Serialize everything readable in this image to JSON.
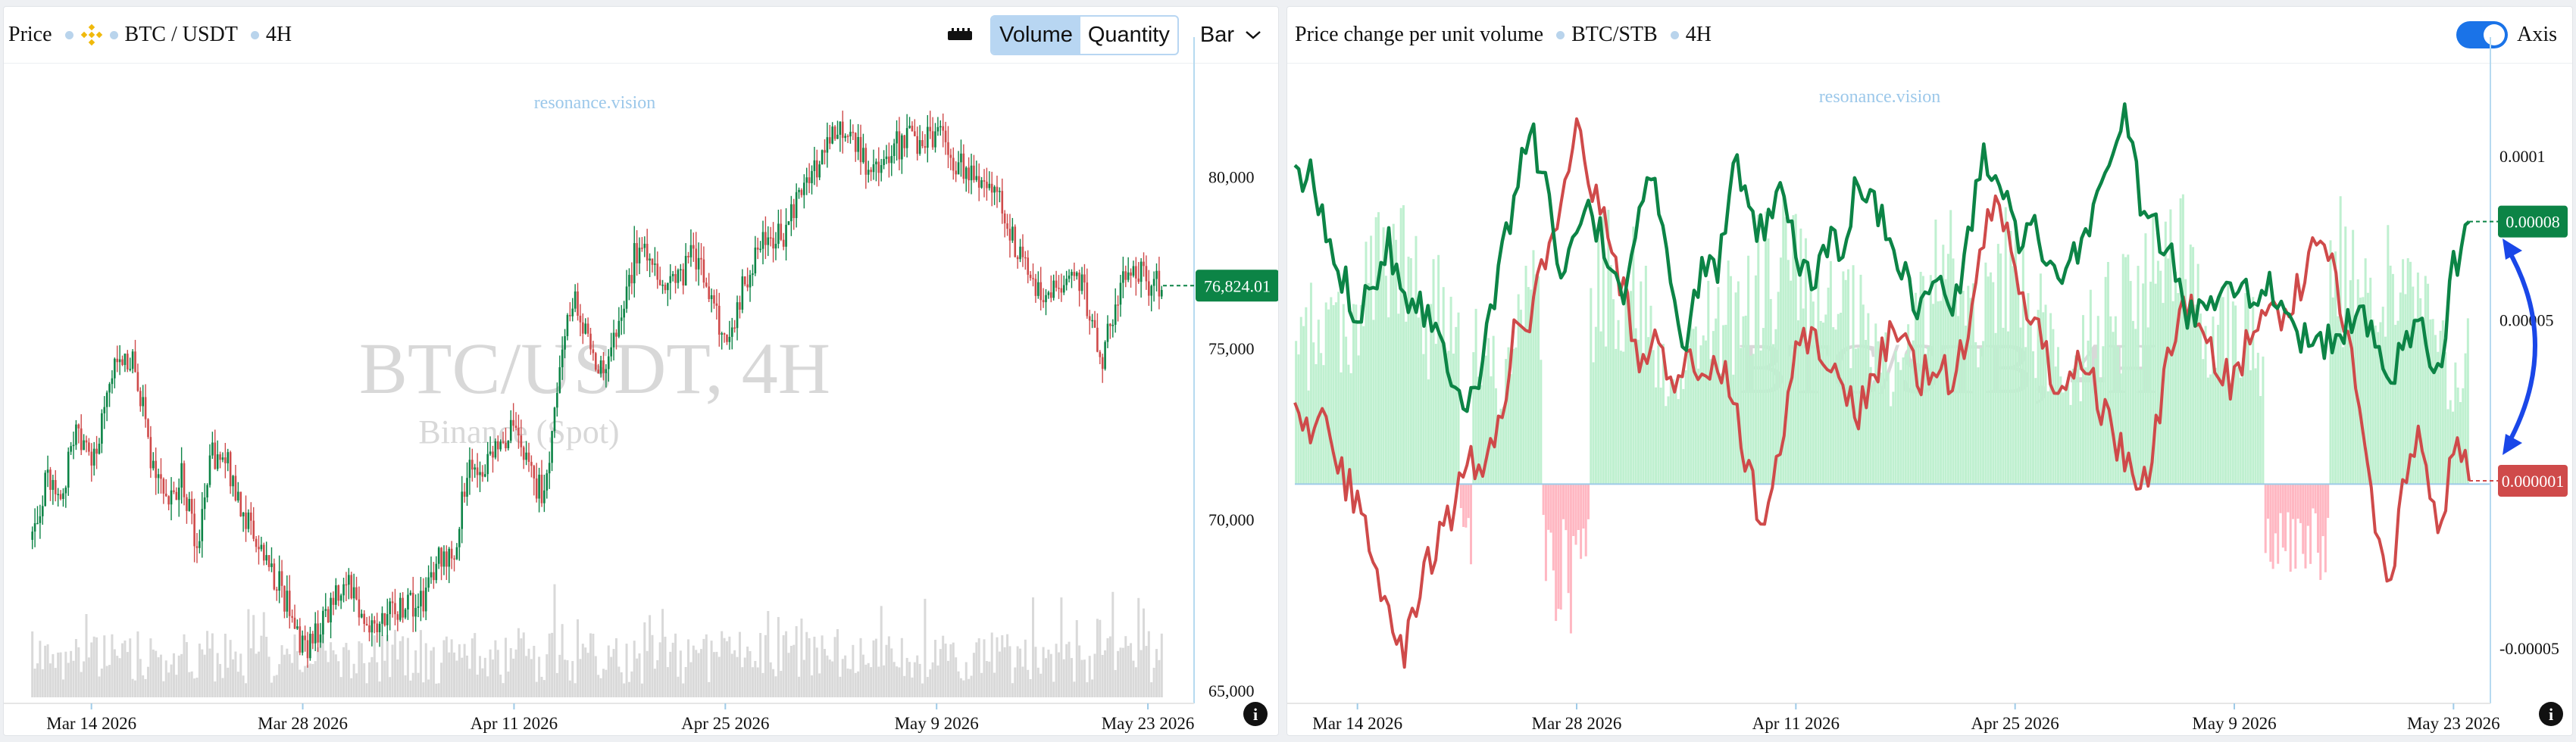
{
  "left": {
    "header": {
      "price_label": "Price",
      "pair": "BTC / USDT",
      "timeframe": "4H"
    },
    "toolbar": {
      "volume_label": "Volume",
      "quantity_label": "Quantity",
      "bar_label": "Bar"
    },
    "watermark": {
      "brand": "resonance.vision",
      "main": "BTC/USDT, 4H",
      "sub": "Binance (Spot)"
    },
    "last_price_label": "76,824.01"
  },
  "right": {
    "header": {
      "title": "Price change per unit volume",
      "pair": "BTC/STB",
      "timeframe": "4H"
    },
    "toolbar": {
      "axis_label": "Axis"
    },
    "watermark": {
      "brand": "resonance.vision",
      "main": "BTC/STB, 4H"
    },
    "badge_top": "0.00008",
    "badge_bottom": "0.000001"
  },
  "colors": {
    "up": "#0c8446",
    "down": "#cf4a4a",
    "volume": "#d9d9d9",
    "hist_pos": "#bff0d0",
    "hist_neg": "#ffb7c2",
    "axis_line": "#9fcbe8",
    "arrow": "#1a47e8"
  },
  "icons": {
    "exchange_logo": "binance-logo-icon",
    "ruler": "ruler-icon",
    "info": "info-icon",
    "chevron": "chevron-down-icon"
  },
  "chart_data": [
    {
      "type": "candlestick",
      "y_ticks": [
        "80,000",
        "75,000",
        "70,000",
        "65,000"
      ],
      "y_tick_values": [
        80000,
        75000,
        70000,
        65000
      ],
      "ylim": [
        64800,
        83200
      ],
      "x_ticks": [
        "Mar 14 2026",
        "Mar 28 2026",
        "Apr 11 2026",
        "Apr 25 2026",
        "May 9 2026",
        "May 23 2026"
      ],
      "x_start": "Mar 10 2026",
      "x_end": "May 24 2026",
      "close_path": [
        [
          "Mar 10 2026",
          69400
        ],
        [
          "Mar 11 2026",
          71200
        ],
        [
          "Mar 12 2026",
          70500
        ],
        [
          "Mar 13 2026",
          72800
        ],
        [
          "Mar 14 2026",
          71300
        ],
        [
          "Mar 15 2026",
          73500
        ],
        [
          "Mar 16 2026",
          74900
        ],
        [
          "Mar 17 2026",
          74300
        ],
        [
          "Mar 18 2026",
          71500
        ],
        [
          "Mar 19 2026",
          70300
        ],
        [
          "Mar 20 2026",
          71300
        ],
        [
          "Mar 21 2026",
          69300
        ],
        [
          "Mar 22 2026",
          71800
        ],
        [
          "Mar 23 2026",
          71600
        ],
        [
          "Mar 24 2026",
          70300
        ],
        [
          "Mar 25 2026",
          69300
        ],
        [
          "Mar 26 2026",
          68500
        ],
        [
          "Mar 27 2026",
          67500
        ],
        [
          "Mar 28 2026",
          66200
        ],
        [
          "Mar 29 2026",
          66700
        ],
        [
          "Mar 30 2026",
          67700
        ],
        [
          "Mar 31 2026",
          68400
        ],
        [
          "Apr 1 2026",
          67100
        ],
        [
          "Apr 2 2026",
          66800
        ],
        [
          "Apr 3 2026",
          67300
        ],
        [
          "Apr 4 2026",
          67600
        ],
        [
          "Apr 5 2026",
          67500
        ],
        [
          "Apr 6 2026",
          69000
        ],
        [
          "Apr 7 2026",
          68600
        ],
        [
          "Apr 8 2026",
          71800
        ],
        [
          "Apr 9 2026",
          71300
        ],
        [
          "Apr 10 2026",
          72300
        ],
        [
          "Apr 11 2026",
          72500
        ],
        [
          "Apr 12 2026",
          71400
        ],
        [
          "Apr 13 2026",
          70600
        ],
        [
          "Apr 14 2026",
          74700
        ],
        [
          "Apr 15 2026",
          76400
        ],
        [
          "Apr 16 2026",
          75100
        ],
        [
          "Apr 17 2026",
          74200
        ],
        [
          "Apr 18 2026",
          75600
        ],
        [
          "Apr 19 2026",
          77700
        ],
        [
          "Apr 20 2026",
          77800
        ],
        [
          "Apr 21 2026",
          76800
        ],
        [
          "Apr 22 2026",
          77100
        ],
        [
          "Apr 23 2026",
          77800
        ],
        [
          "Apr 24 2026",
          76500
        ],
        [
          "Apr 25 2026",
          75200
        ],
        [
          "Apr 26 2026",
          76500
        ],
        [
          "Apr 27 2026",
          77800
        ],
        [
          "Apr 28 2026",
          78100
        ],
        [
          "Apr 29 2026",
          78400
        ],
        [
          "Apr 30 2026",
          79800
        ],
        [
          "May 1 2026",
          80200
        ],
        [
          "May 2 2026",
          81100
        ],
        [
          "May 3 2026",
          81600
        ],
        [
          "May 4 2026",
          80600
        ],
        [
          "May 5 2026",
          80000
        ],
        [
          "May 6 2026",
          80800
        ],
        [
          "May 7 2026",
          81100
        ],
        [
          "May 8 2026",
          80900
        ],
        [
          "May 9 2026",
          81300
        ],
        [
          "May 10 2026",
          80500
        ],
        [
          "May 11 2026",
          80300
        ],
        [
          "May 12 2026",
          79600
        ],
        [
          "May 13 2026",
          79800
        ],
        [
          "May 14 2026",
          78300
        ],
        [
          "May 15 2026",
          77200
        ],
        [
          "May 16 2026",
          76700
        ],
        [
          "May 17 2026",
          76700
        ],
        [
          "May 18 2026",
          77500
        ],
        [
          "May 19 2026",
          76300
        ],
        [
          "May 20 2026",
          74600
        ],
        [
          "May 21 2026",
          76600
        ],
        [
          "May 22 2026",
          77500
        ],
        [
          "May 23 2026",
          76900
        ],
        [
          "May 24 2026",
          76824
        ]
      ],
      "last_price": 76824.01,
      "volume_note": "Grey volume bars along the bottom of the price panel"
    },
    {
      "type": "line",
      "y_ticks": [
        "0.0001",
        "0.00005",
        "-0.00005"
      ],
      "y_tick_values": [
        0.0001,
        5e-05,
        -5e-05
      ],
      "ylim": [
        -6.5e-05,
        0.000127
      ],
      "x_ticks": [
        "Mar 14 2026",
        "Mar 28 2026",
        "Apr 11 2026",
        "Apr 25 2026",
        "May 9 2026",
        "May 23 2026"
      ],
      "x_start": "Mar 10 2026",
      "x_end": "May 24 2026",
      "series": [
        {
          "values": [
            [
              "Mar 10 2026",
              9.2e-05
            ],
            [
              "Mar 11 2026",
              9.4e-05
            ],
            [
              "Mar 12 2026",
              7.6e-05
            ],
            [
              "Mar 13 2026",
              6.3e-05
            ],
            [
              "Mar 14 2026",
              5.3e-05
            ],
            [
              "Mar 15 2026",
              6.2e-05
            ],
            [
              "Mar 16 2026",
              7.4e-05
            ],
            [
              "Mar 17 2026",
              5.8e-05
            ],
            [
              "Mar 18 2026",
              5.6e-05
            ],
            [
              "Mar 19 2026",
              4.7e-05
            ],
            [
              "Mar 20 2026",
              3.5e-05
            ],
            [
              "Mar 21 2026",
              2.6e-05
            ],
            [
              "Mar 22 2026",
              3.6e-05
            ],
            [
              "Mar 23 2026",
              6.5e-05
            ],
            [
              "Mar 24 2026",
              8.8e-05
            ],
            [
              "Mar 25 2026",
              0.000108
            ],
            [
              "Mar 26 2026",
              9.4e-05
            ],
            [
              "Mar 27 2026",
              5.8e-05
            ],
            [
              "Mar 28 2026",
              7.8e-05
            ],
            [
              "Mar 29 2026",
              8.2e-05
            ],
            [
              "Mar 30 2026",
              6.9e-05
            ],
            [
              "Mar 31 2026",
              5.9e-05
            ],
            [
              "Apr 1 2026",
              8.5e-05
            ],
            [
              "Apr 2 2026",
              9.4e-05
            ],
            [
              "Apr 3 2026",
              5.7e-05
            ],
            [
              "Apr 4 2026",
              4.4e-05
            ],
            [
              "Apr 5 2026",
              6.6e-05
            ],
            [
              "Apr 6 2026",
              6.5e-05
            ],
            [
              "Apr 7 2026",
              9.9e-05
            ],
            [
              "Apr 8 2026",
              8.1e-05
            ],
            [
              "Apr 9 2026",
              7.5e-05
            ],
            [
              "Apr 10 2026",
              8.8e-05
            ],
            [
              "Apr 11 2026",
              7.1e-05
            ],
            [
              "Apr 12 2026",
              6e-05
            ],
            [
              "Apr 13 2026",
              7.5e-05
            ],
            [
              "Apr 14 2026",
              6.8e-05
            ],
            [
              "Apr 15 2026",
              9.5e-05
            ],
            [
              "Apr 16 2026",
              8.4e-05
            ],
            [
              "Apr 17 2026",
              7.6e-05
            ],
            [
              "Apr 18 2026",
              6.4e-05
            ],
            [
              "Apr 19 2026",
              5.2e-05
            ],
            [
              "Apr 20 2026",
              6.5e-05
            ],
            [
              "Apr 21 2026",
              5e-05
            ],
            [
              "Apr 22 2026",
              7.5e-05
            ],
            [
              "Apr 23 2026",
              0.0001
            ],
            [
              "Apr 24 2026",
              9.2e-05
            ],
            [
              "Apr 25 2026",
              7.5e-05
            ],
            [
              "Apr 26 2026",
              8e-05
            ],
            [
              "Apr 27 2026",
              6.5e-05
            ],
            [
              "Apr 28 2026",
              5.8e-05
            ],
            [
              "Apr 29 2026",
              7.2e-05
            ],
            [
              "Apr 30 2026",
              8.3e-05
            ],
            [
              "May 1 2026",
              0.0001
            ],
            [
              "May 2 2026",
              0.000112
            ],
            [
              "May 3 2026",
              8.8e-05
            ],
            [
              "May 4 2026",
              7.7e-05
            ],
            [
              "May 5 2026",
              6.8e-05
            ],
            [
              "May 6 2026",
              5e-05
            ],
            [
              "May 7 2026",
              5.5e-05
            ],
            [
              "May 8 2026",
              6e-05
            ],
            [
              "May 9 2026",
              6.3e-05
            ],
            [
              "May 10 2026",
              5.6e-05
            ],
            [
              "May 11 2026",
              6.1e-05
            ],
            [
              "May 12 2026",
              5.7e-05
            ],
            [
              "May 13 2026",
              4.8e-05
            ],
            [
              "May 14 2026",
              4e-05
            ],
            [
              "May 15 2026",
              4.3e-05
            ],
            [
              "May 16 2026",
              4.5e-05
            ],
            [
              "May 17 2026",
              5.6e-05
            ],
            [
              "May 18 2026",
              4e-05
            ],
            [
              "May 19 2026",
              3.3e-05
            ],
            [
              "May 20 2026",
              4.5e-05
            ],
            [
              "May 21 2026",
              4.9e-05
            ],
            [
              "May 22 2026",
              3.4e-05
            ],
            [
              "May 23 2026",
              6.5e-05
            ],
            [
              "May 24 2026",
              8e-05
            ]
          ]
        },
        {
          "values": [
            [
              "Mar 10 2026",
              2.8e-05
            ],
            [
              "Mar 11 2026",
              1.5e-05
            ],
            [
              "Mar 12 2026",
              2.1e-05
            ],
            [
              "Mar 13 2026",
              3e-06
            ],
            [
              "Mar 14 2026",
              -5e-06
            ],
            [
              "Mar 15 2026",
              -1.8e-05
            ],
            [
              "Mar 16 2026",
              -4.2e-05
            ],
            [
              "Mar 17 2026",
              -5e-05
            ],
            [
              "Mar 18 2026",
              -3e-05
            ],
            [
              "Mar 19 2026",
              -2e-05
            ],
            [
              "Mar 20 2026",
              -8e-06
            ],
            [
              "Mar 21 2026",
              1e-05
            ],
            [
              "Mar 22 2026",
              5e-06
            ],
            [
              "Mar 23 2026",
              1.8e-05
            ],
            [
              "Mar 24 2026",
              4.5e-05
            ],
            [
              "Mar 25 2026",
              5e-05
            ],
            [
              "Mar 26 2026",
              6.8e-05
            ],
            [
              "Mar 27 2026",
              8e-05
            ],
            [
              "Mar 28 2026",
              0.000108
            ],
            [
              "Mar 29 2026",
              9e-05
            ],
            [
              "Mar 30 2026",
              7.5e-05
            ],
            [
              "Mar 31 2026",
              5.8e-05
            ],
            [
              "Apr 1 2026",
              3.5e-05
            ],
            [
              "Apr 2 2026",
              4.8e-05
            ],
            [
              "Apr 3 2026",
              3e-05
            ],
            [
              "Apr 4 2026",
              3.8e-05
            ],
            [
              "Apr 5 2026",
              3.2e-05
            ],
            [
              "Apr 6 2026",
              4e-05
            ],
            [
              "Apr 7 2026",
              2.6e-05
            ],
            [
              "Apr 8 2026",
              3e-06
            ],
            [
              "Apr 9 2026",
              -1.3e-05
            ],
            [
              "Apr 10 2026",
              1.2e-05
            ],
            [
              "Apr 11 2026",
              4e-05
            ],
            [
              "Apr 12 2026",
              4.7e-05
            ],
            [
              "Apr 13 2026",
              3.8e-05
            ],
            [
              "Apr 14 2026",
              3e-05
            ],
            [
              "Apr 15 2026",
              2.2e-05
            ],
            [
              "Apr 16 2026",
              3.4e-05
            ],
            [
              "Apr 17 2026",
              4.4e-05
            ],
            [
              "Apr 18 2026",
              4e-05
            ],
            [
              "Apr 19 2026",
              3.2e-05
            ],
            [
              "Apr 20 2026",
              3.8e-05
            ],
            [
              "Apr 21 2026",
              3.2e-05
            ],
            [
              "Apr 22 2026",
              4.5e-05
            ],
            [
              "Apr 23 2026",
              7.5e-05
            ],
            [
              "Apr 24 2026",
              8.7e-05
            ],
            [
              "Apr 25 2026",
              6.5e-05
            ],
            [
              "Apr 26 2026",
              5e-05
            ],
            [
              "Apr 27 2026",
              4e-05
            ],
            [
              "Apr 28 2026",
              2.5e-05
            ],
            [
              "Apr 29 2026",
              4e-05
            ],
            [
              "Apr 30 2026",
              3e-05
            ],
            [
              "May 1 2026",
              1.8e-05
            ],
            [
              "May 2 2026",
              8e-06
            ],
            [
              "May 3 2026",
              -5e-06
            ],
            [
              "May 4 2026",
              1.5e-05
            ],
            [
              "May 5 2026",
              4.5e-05
            ],
            [
              "May 6 2026",
              5.5e-05
            ],
            [
              "May 7 2026",
              4.3e-05
            ],
            [
              "May 8 2026",
              3.5e-05
            ],
            [
              "May 9 2026",
              3e-05
            ],
            [
              "May 10 2026",
              4.5e-05
            ],
            [
              "May 11 2026",
              5.5e-05
            ],
            [
              "May 12 2026",
              5e-05
            ],
            [
              "May 13 2026",
              5.8e-05
            ],
            [
              "May 14 2026",
              7.4e-05
            ],
            [
              "May 15 2026",
              7e-05
            ],
            [
              "May 16 2026",
              5e-05
            ],
            [
              "May 17 2026",
              2.5e-05
            ],
            [
              "May 18 2026",
              -1e-05
            ],
            [
              "May 19 2026",
              -3e-05
            ],
            [
              "May 20 2026",
              5e-06
            ],
            [
              "May 21 2026",
              1.5e-05
            ],
            [
              "May 22 2026",
              -2e-05
            ],
            [
              "May 23 2026",
              1.5e-05
            ],
            [
              "May 24 2026",
              1e-06
            ]
          ]
        }
      ],
      "histogram_note": "Light green/pink volume histogram behind the lines; pink where values fall below the zero baseline"
    }
  ]
}
